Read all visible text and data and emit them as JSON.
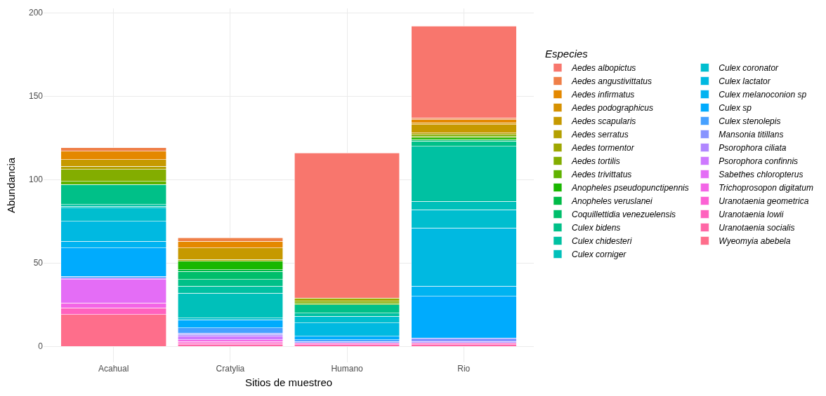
{
  "chart_data": {
    "type": "bar",
    "stacked": true,
    "xlabel": "Sitios de muestreo",
    "ylabel": "Abundancia",
    "legend_title": "Especies",
    "legend": "right",
    "grid": true,
    "categories": [
      "Acahual",
      "Cratylia",
      "Humano",
      "Rio"
    ],
    "ylim": [
      -9.6,
      202.6
    ],
    "yticks": [
      0,
      50,
      100,
      150,
      200
    ],
    "series": [
      {
        "name": "Aedes albopictus",
        "color": "#f8766d",
        "values": [
          null,
          null,
          87,
          55
        ]
      },
      {
        "name": "Aedes angustivittatus",
        "color": "#ef7f48",
        "values": [
          2,
          2,
          null,
          1
        ]
      },
      {
        "name": "Aedes infirmatus",
        "color": "#e48800",
        "values": [
          5,
          4,
          null,
          2
        ]
      },
      {
        "name": "Aedes podographicus",
        "color": "#d69100",
        "values": [
          null,
          null,
          null,
          1
        ]
      },
      {
        "name": "Aedes scapularis",
        "color": "#c69900",
        "values": [
          4,
          7,
          null,
          5
        ]
      },
      {
        "name": "Aedes serratus",
        "color": "#b4a000",
        "values": [
          2,
          null,
          null,
          1
        ]
      },
      {
        "name": "Aedes tormentor",
        "color": "#9ea700",
        "values": [
          null,
          1,
          2,
          null
        ]
      },
      {
        "name": "Aedes tortilis",
        "color": "#83ad00",
        "values": [
          7,
          null,
          1,
          1
        ]
      },
      {
        "name": "Aedes trivittatus",
        "color": "#60b200",
        "values": [
          2,
          null,
          1,
          1
        ]
      },
      {
        "name": "Anopheles pseudopunctipennis",
        "color": "#19b700",
        "values": [
          null,
          5,
          null,
          1
        ]
      },
      {
        "name": "Anopheles veruslanei",
        "color": "#00bb48",
        "values": [
          null,
          1,
          null,
          null
        ]
      },
      {
        "name": "Coquillettidia venezuelensis",
        "color": "#00be6b",
        "values": [
          null,
          5,
          null,
          1
        ]
      },
      {
        "name": "Culex bidens",
        "color": "#00c088",
        "values": [
          12,
          4,
          5,
          3
        ]
      },
      {
        "name": "Culex chidesteri",
        "color": "#00c1a2",
        "values": [
          1,
          4,
          2,
          33
        ]
      },
      {
        "name": "Culex corniger",
        "color": "#00c0ba",
        "values": [
          1,
          15,
          null,
          5
        ]
      },
      {
        "name": "Culex coronator",
        "color": "#00becf",
        "values": [
          8,
          1,
          4,
          11
        ]
      },
      {
        "name": "Culex lactator",
        "color": "#00b9e1",
        "values": [
          12,
          null,
          8,
          35
        ]
      },
      {
        "name": "Culex melanoconion sp",
        "color": "#00b3f1",
        "values": [
          4,
          null,
          null,
          6
        ]
      },
      {
        "name": "Culex sp",
        "color": "#00abfd",
        "values": [
          17,
          5,
          2,
          25
        ]
      },
      {
        "name": "Culex stenolepis",
        "color": "#46a0ff",
        "values": [
          1,
          3,
          1,
          null
        ]
      },
      {
        "name": "Mansonia titillans",
        "color": "#8794ff",
        "values": [
          null,
          1,
          1,
          2
        ]
      },
      {
        "name": "Psorophora ciliata",
        "color": "#b086ff",
        "values": [
          null,
          1,
          null,
          1
        ]
      },
      {
        "name": "Psorophora confinnis",
        "color": "#ce79ff",
        "values": [
          1,
          2,
          null,
          null
        ]
      },
      {
        "name": "Sabethes chloropterus",
        "color": "#e46df6",
        "values": [
          14,
          null,
          null,
          null
        ]
      },
      {
        "name": "Trichoprosopon digitatum",
        "color": "#f365e6",
        "values": [
          3,
          1,
          null,
          null
        ]
      },
      {
        "name": "Uranotaenia geometrica",
        "color": "#fc61d4",
        "values": [
          null,
          1,
          1,
          null
        ]
      },
      {
        "name": "Uranotaenia lowii",
        "color": "#ff62be",
        "values": [
          4,
          1,
          null,
          1
        ]
      },
      {
        "name": "Uranotaenia socialis",
        "color": "#ff67a6",
        "values": [
          null,
          1,
          1,
          1
        ]
      },
      {
        "name": "Wyeomyia abebela",
        "color": "#fe6e8b",
        "values": [
          19,
          null,
          null,
          null
        ]
      }
    ]
  }
}
